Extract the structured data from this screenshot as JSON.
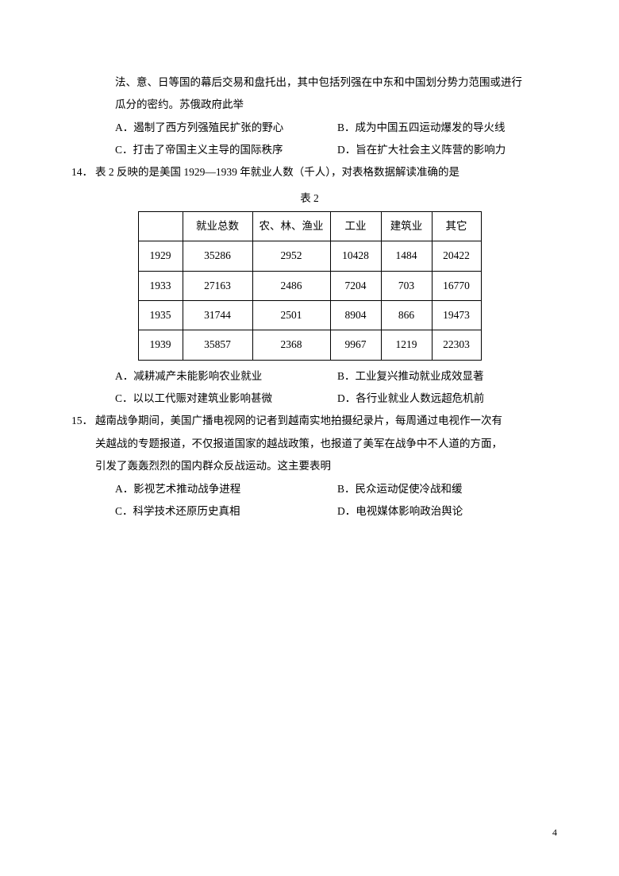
{
  "q13_continue": {
    "line1": "法、意、日等国的幕后交易和盘托出，其中包括列强在中东和中国划分势力范围或进行",
    "line2": "瓜分的密约。苏俄政府此举",
    "optA": "A．遏制了西方列强殖民扩张的野心",
    "optB": "B．成为中国五四运动爆发的导火线",
    "optC": "C．打击了帝国主义主导的国际秩序",
    "optD": "D．旨在扩大社会主义阵营的影响力"
  },
  "q14": {
    "num": "14．",
    "stem": "表 2 反映的是美国 1929—1939 年就业人数（千人），对表格数据解读准确的是",
    "caption": "表 2",
    "headers": {
      "c0": "",
      "c1": "就业总数",
      "c2": "农、林、渔业",
      "c3": "工业",
      "c4": "建筑业",
      "c5": "其它"
    },
    "rows": {
      "r1": {
        "c0": "1929",
        "c1": "35286",
        "c2": "2952",
        "c3": "10428",
        "c4": "1484",
        "c5": "20422"
      },
      "r2": {
        "c0": "1933",
        "c1": "27163",
        "c2": "2486",
        "c3": "7204",
        "c4": "703",
        "c5": "16770"
      },
      "r3": {
        "c0": "1935",
        "c1": "31744",
        "c2": "2501",
        "c3": "8904",
        "c4": "866",
        "c5": "19473"
      },
      "r4": {
        "c0": "1939",
        "c1": "35857",
        "c2": "2368",
        "c3": "9967",
        "c4": "1219",
        "c5": "22303"
      }
    },
    "optA": "A．减耕减产未能影响农业就业",
    "optB": "B．工业复兴推动就业成效显著",
    "optC": "C．以以工代赈对建筑业影响甚微",
    "optD": "D．各行业就业人数远超危机前"
  },
  "q15": {
    "num": "15．",
    "line1": "越南战争期间，美国广播电视网的记者到越南实地拍摄纪录片，每周通过电视作一次有",
    "line2": "关越战的专题报道，不仅报道国家的越战政策，也报道了美军在战争中不人道的方面，",
    "line3": "引发了轰轰烈烈的国内群众反战运动。这主要表明",
    "optA": "A．影视艺术推动战争进程",
    "optB": "B．民众运动促使冷战和缓",
    "optC": "C．科学技术还原历史真相",
    "optD": "D．电视媒体影响政治舆论"
  },
  "page_number": "4"
}
